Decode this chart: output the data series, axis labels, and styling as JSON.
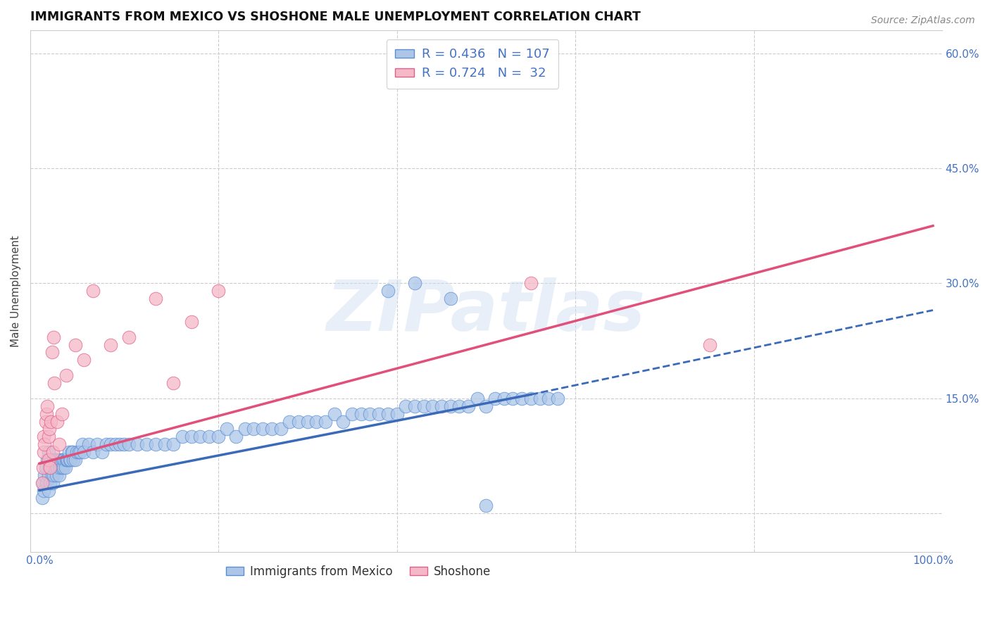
{
  "title": "IMMIGRANTS FROM MEXICO VS SHOSHONE MALE UNEMPLOYMENT CORRELATION CHART",
  "source": "Source: ZipAtlas.com",
  "ylabel": "Male Unemployment",
  "xlim": [
    -0.01,
    1.01
  ],
  "ylim": [
    -0.05,
    0.63
  ],
  "ytick_positions": [
    0.0,
    0.15,
    0.3,
    0.45,
    0.6
  ],
  "right_yticklabels": [
    "",
    "15.0%",
    "30.0%",
    "45.0%",
    "60.0%"
  ],
  "blue_scatter_color": "#adc6e8",
  "blue_edge_color": "#5b8fd4",
  "pink_scatter_color": "#f5b8c8",
  "pink_edge_color": "#e0608a",
  "blue_line_color": "#3a6ab8",
  "pink_line_color": "#e0507a",
  "legend_blue_R": "0.436",
  "legend_blue_N": "107",
  "legend_pink_R": "0.724",
  "legend_pink_N": "32",
  "label_color": "#4472c4",
  "watermark": "ZIPatlas",
  "background_color": "#ffffff",
  "grid_color": "#cccccc",
  "blue_scatter_x": [
    0.003,
    0.004,
    0.005,
    0.006,
    0.007,
    0.008,
    0.009,
    0.01,
    0.01,
    0.01,
    0.011,
    0.012,
    0.013,
    0.014,
    0.015,
    0.015,
    0.016,
    0.017,
    0.018,
    0.019,
    0.02,
    0.021,
    0.022,
    0.023,
    0.024,
    0.025,
    0.026,
    0.027,
    0.028,
    0.029,
    0.03,
    0.031,
    0.032,
    0.033,
    0.034,
    0.035,
    0.036,
    0.037,
    0.038,
    0.04,
    0.042,
    0.044,
    0.046,
    0.048,
    0.05,
    0.055,
    0.06,
    0.065,
    0.07,
    0.075,
    0.08,
    0.085,
    0.09,
    0.095,
    0.1,
    0.11,
    0.12,
    0.13,
    0.14,
    0.15,
    0.16,
    0.17,
    0.18,
    0.19,
    0.2,
    0.21,
    0.22,
    0.23,
    0.24,
    0.25,
    0.26,
    0.27,
    0.28,
    0.29,
    0.3,
    0.31,
    0.32,
    0.33,
    0.34,
    0.35,
    0.36,
    0.37,
    0.38,
    0.39,
    0.4,
    0.41,
    0.42,
    0.43,
    0.44,
    0.45,
    0.46,
    0.47,
    0.48,
    0.49,
    0.5,
    0.51,
    0.52,
    0.53,
    0.54,
    0.55,
    0.56,
    0.57,
    0.58,
    0.39,
    0.42,
    0.46,
    0.5
  ],
  "blue_scatter_y": [
    0.02,
    0.04,
    0.03,
    0.05,
    0.06,
    0.04,
    0.07,
    0.05,
    0.03,
    0.08,
    0.06,
    0.04,
    0.07,
    0.05,
    0.06,
    0.04,
    0.05,
    0.06,
    0.07,
    0.05,
    0.06,
    0.07,
    0.05,
    0.06,
    0.07,
    0.06,
    0.07,
    0.06,
    0.07,
    0.06,
    0.07,
    0.07,
    0.07,
    0.08,
    0.07,
    0.07,
    0.08,
    0.08,
    0.07,
    0.07,
    0.08,
    0.08,
    0.08,
    0.09,
    0.08,
    0.09,
    0.08,
    0.09,
    0.08,
    0.09,
    0.09,
    0.09,
    0.09,
    0.09,
    0.09,
    0.09,
    0.09,
    0.09,
    0.09,
    0.09,
    0.1,
    0.1,
    0.1,
    0.1,
    0.1,
    0.11,
    0.1,
    0.11,
    0.11,
    0.11,
    0.11,
    0.11,
    0.12,
    0.12,
    0.12,
    0.12,
    0.12,
    0.13,
    0.12,
    0.13,
    0.13,
    0.13,
    0.13,
    0.13,
    0.13,
    0.14,
    0.14,
    0.14,
    0.14,
    0.14,
    0.14,
    0.14,
    0.14,
    0.15,
    0.14,
    0.15,
    0.15,
    0.15,
    0.15,
    0.15,
    0.15,
    0.15,
    0.15,
    0.29,
    0.3,
    0.28,
    0.01
  ],
  "pink_scatter_x": [
    0.003,
    0.004,
    0.005,
    0.005,
    0.006,
    0.007,
    0.008,
    0.009,
    0.01,
    0.01,
    0.011,
    0.012,
    0.013,
    0.014,
    0.015,
    0.016,
    0.017,
    0.02,
    0.022,
    0.025,
    0.03,
    0.04,
    0.05,
    0.06,
    0.08,
    0.1,
    0.13,
    0.15,
    0.17,
    0.2,
    0.55,
    0.75
  ],
  "pink_scatter_y": [
    0.04,
    0.06,
    0.08,
    0.1,
    0.09,
    0.12,
    0.13,
    0.14,
    0.07,
    0.1,
    0.11,
    0.06,
    0.12,
    0.21,
    0.08,
    0.23,
    0.17,
    0.12,
    0.09,
    0.13,
    0.18,
    0.22,
    0.2,
    0.29,
    0.22,
    0.23,
    0.28,
    0.17,
    0.25,
    0.29,
    0.3,
    0.22
  ],
  "blue_trend_x": [
    0.0,
    0.55
  ],
  "blue_trend_y": [
    0.03,
    0.155
  ],
  "pink_trend_x": [
    0.0,
    1.0
  ],
  "pink_trend_y": [
    0.065,
    0.375
  ],
  "dashed_trend_x": [
    0.55,
    1.0
  ],
  "dashed_trend_y": [
    0.155,
    0.265
  ]
}
